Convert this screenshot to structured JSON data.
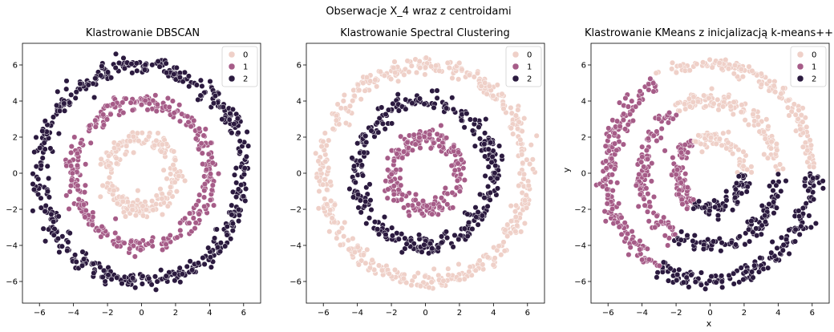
{
  "figure": {
    "suptitle": "Obserwacje X_4 wraz z centroidami"
  },
  "palette": {
    "0": "#efd0c8",
    "1": "#a65c88",
    "2": "#2b1a3f",
    "edge": "#ffffff",
    "axis": "#000000"
  },
  "chart_data": [
    {
      "type": "scatter",
      "title": "Klastrowanie DBSCAN",
      "xlabel": "",
      "ylabel": "",
      "xlim": [
        -7,
        7
      ],
      "ylim": [
        -7.2,
        7.2
      ],
      "xticks": [
        -6,
        -4,
        -2,
        0,
        2,
        4,
        6
      ],
      "yticks": [
        -6,
        -4,
        -2,
        0,
        2,
        4,
        6
      ],
      "legend": {
        "placement": "top-right",
        "entries": [
          "0",
          "1",
          "2"
        ]
      },
      "series": [
        {
          "label": "0",
          "shape": "ring",
          "center": [
            0,
            0
          ],
          "radius": 2.0,
          "noise_sd": 0.25,
          "n": 200
        },
        {
          "label": "1",
          "shape": "ring",
          "center": [
            0,
            0
          ],
          "radius": 4.0,
          "noise_sd": 0.25,
          "n": 320
        },
        {
          "label": "2",
          "shape": "ring",
          "center": [
            0,
            0
          ],
          "radius": 6.0,
          "noise_sd": 0.25,
          "n": 480
        }
      ]
    },
    {
      "type": "scatter",
      "title": "Klastrowanie Spectral Clustering",
      "xlabel": "",
      "ylabel": "",
      "xlim": [
        -7,
        7
      ],
      "ylim": [
        -7.2,
        7.2
      ],
      "xticks": [
        -6,
        -4,
        -2,
        0,
        2,
        4,
        6
      ],
      "yticks": [
        -6,
        -4,
        -2,
        0,
        2,
        4,
        6
      ],
      "legend": {
        "placement": "top-right",
        "entries": [
          "0",
          "1",
          "2"
        ]
      },
      "series": [
        {
          "label": "0",
          "shape": "ring",
          "center": [
            0,
            0
          ],
          "radius": 6.0,
          "noise_sd": 0.25,
          "n": 480
        },
        {
          "label": "1",
          "shape": "ring",
          "center": [
            0,
            0
          ],
          "radius": 2.0,
          "noise_sd": 0.25,
          "n": 200
        },
        {
          "label": "2",
          "shape": "ring",
          "center": [
            0,
            0
          ],
          "radius": 4.0,
          "noise_sd": 0.25,
          "n": 320
        }
      ]
    },
    {
      "type": "scatter",
      "title": "Klastrowanie KMeans z inicjalizacją k-means++",
      "xlabel": "x",
      "ylabel": "y",
      "xlim": [
        -7,
        7
      ],
      "ylim": [
        -7.2,
        7.2
      ],
      "xticks": [
        -6,
        -4,
        -2,
        0,
        2,
        4,
        6
      ],
      "yticks": [
        -6,
        -4,
        -2,
        0,
        2,
        4,
        6
      ],
      "legend": {
        "placement": "top-right",
        "entries": [
          "0",
          "1",
          "2"
        ]
      },
      "rings": [
        {
          "radius": 2.0,
          "n": 200
        },
        {
          "radius": 4.0,
          "n": 320
        },
        {
          "radius": 6.0,
          "n": 480
        }
      ],
      "noise_sd": 0.25,
      "sectors": [
        {
          "label": "0",
          "from_deg": 0,
          "to_deg": 120
        },
        {
          "label": "1",
          "from_deg": 120,
          "to_deg": 240
        },
        {
          "label": "2",
          "from_deg": 240,
          "to_deg": 360
        }
      ]
    }
  ]
}
